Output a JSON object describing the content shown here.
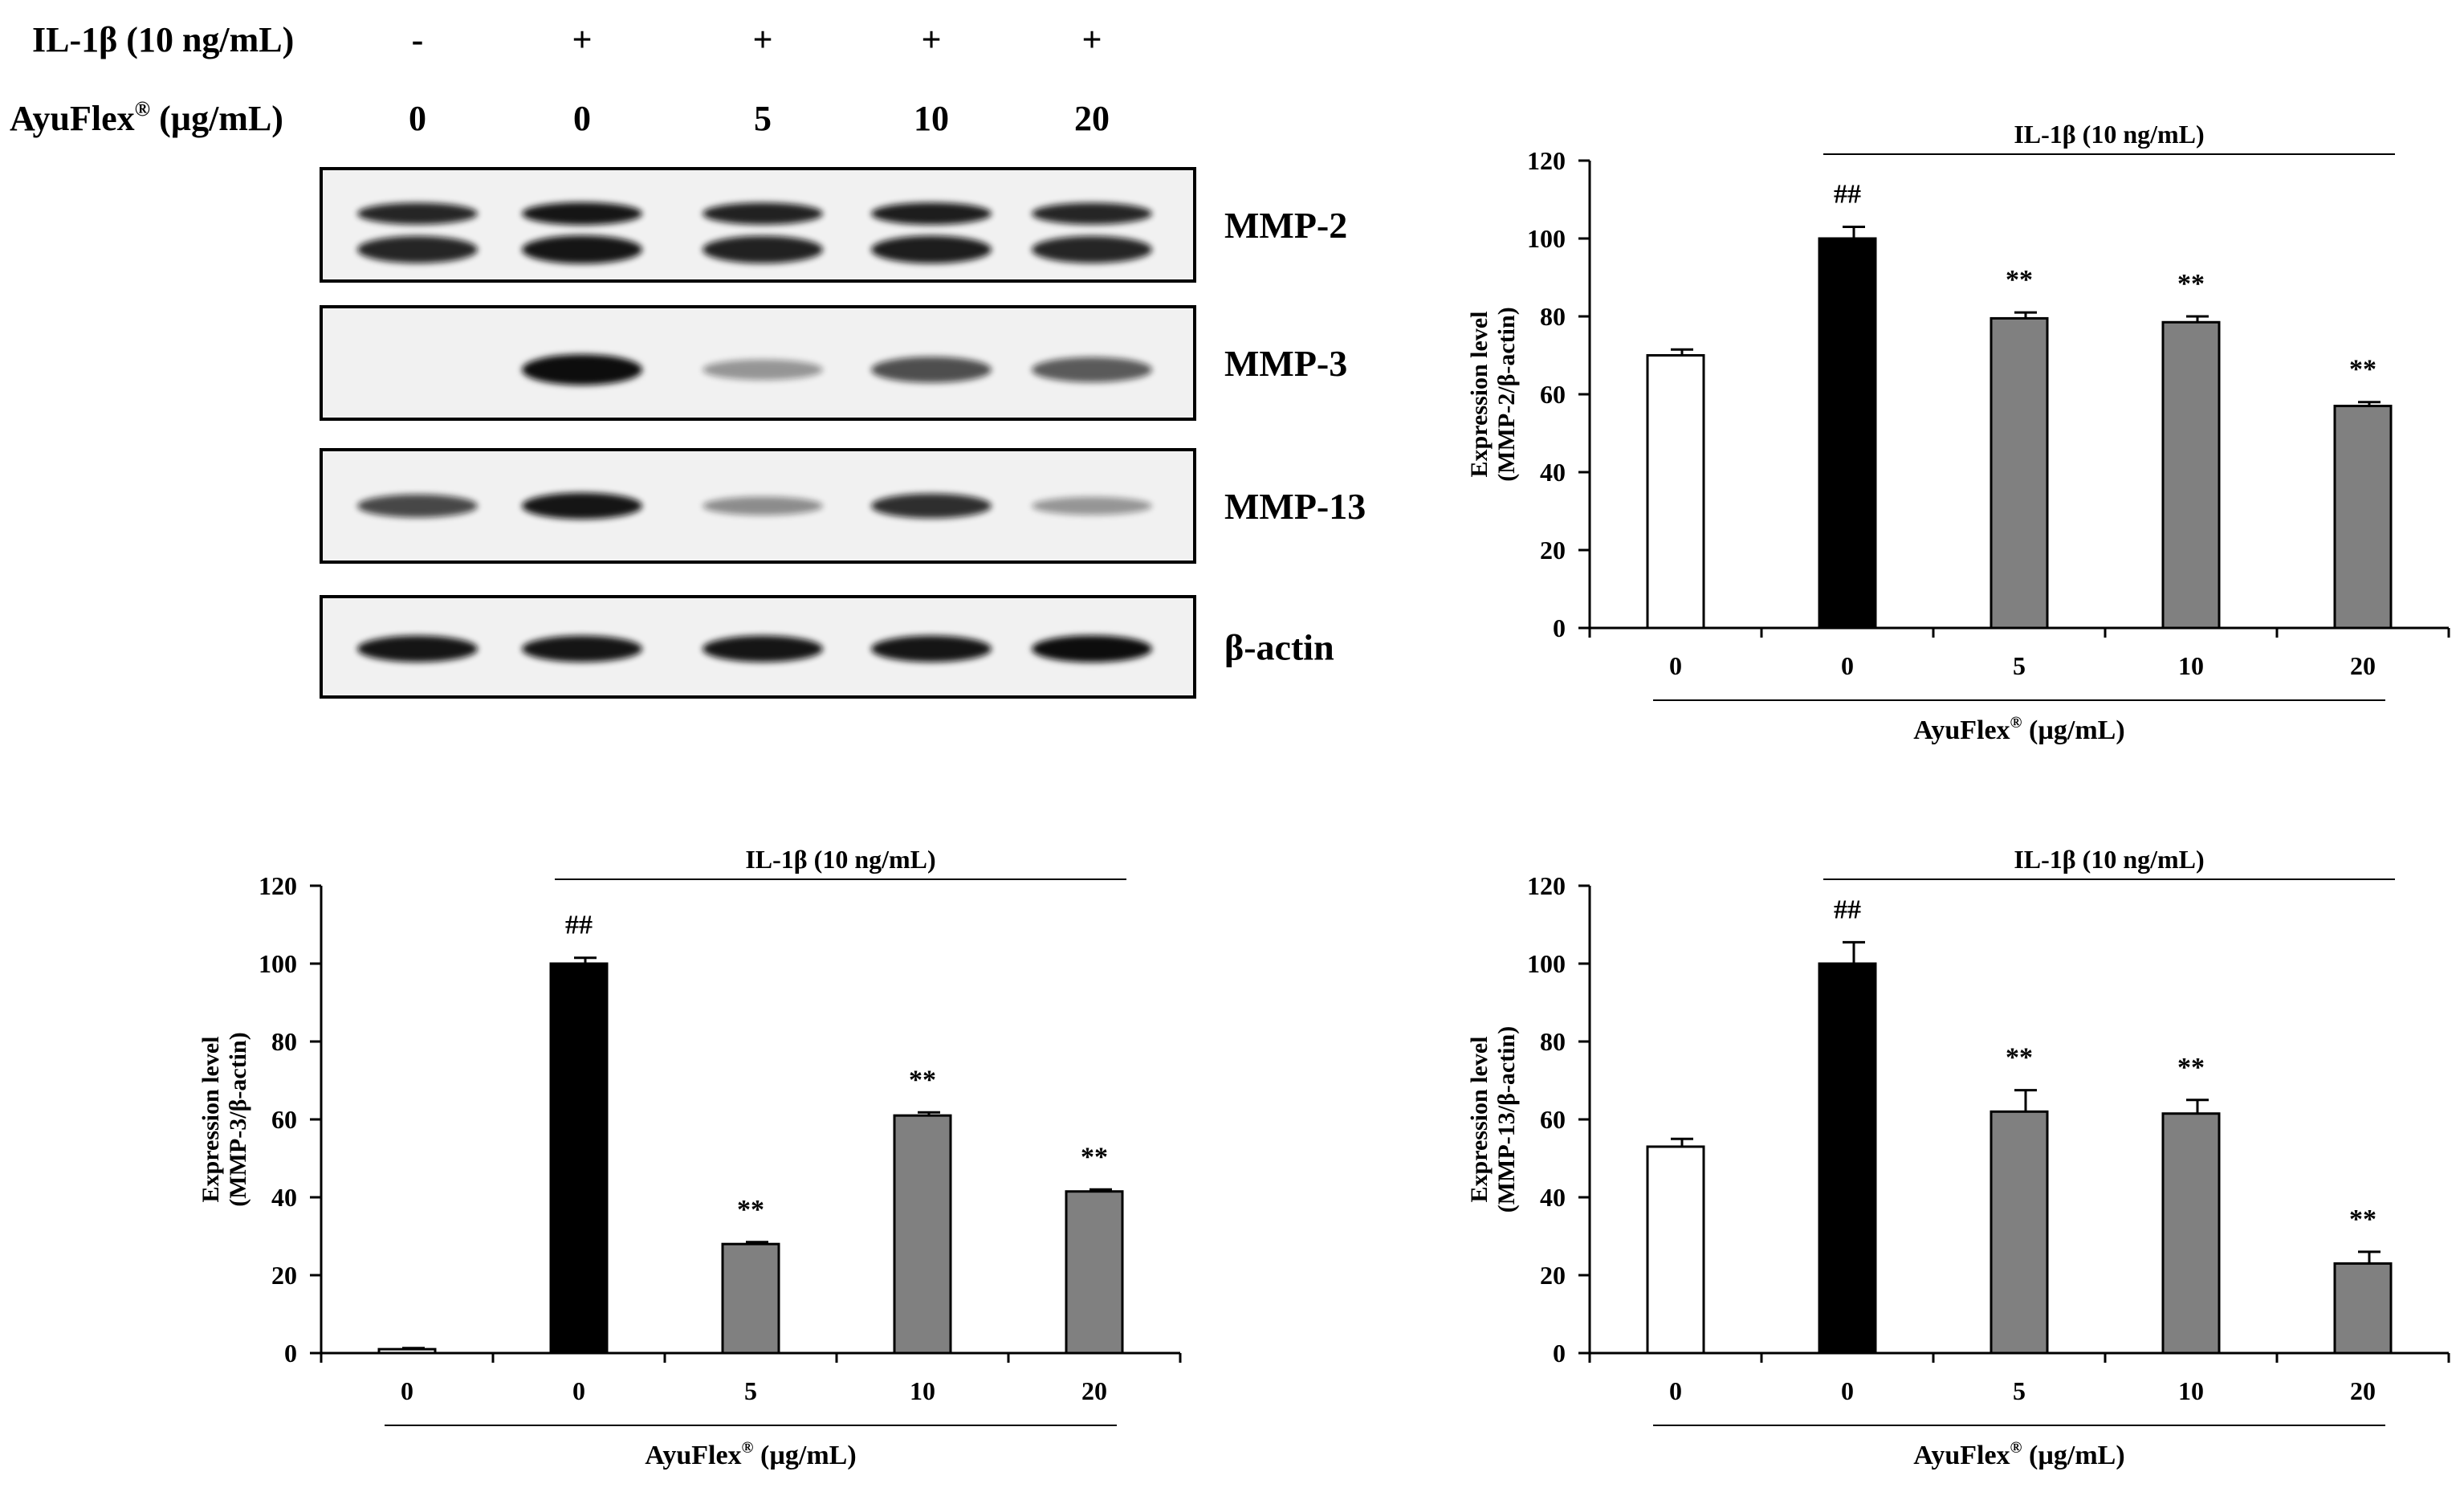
{
  "blot": {
    "rows": [
      {
        "label": "IL-1β (10 ng/mL)",
        "values": [
          "-",
          "+",
          "+",
          "+",
          "+"
        ]
      },
      {
        "label": "AyuFlex",
        "sup": "®",
        "unit": " (µg/mL)",
        "values": [
          "0",
          "0",
          "5",
          "10",
          "20"
        ]
      }
    ],
    "proteins": [
      {
        "name": "MMP-2",
        "intensity": [
          0.85,
          0.95,
          0.88,
          0.9,
          0.85
        ]
      },
      {
        "name": "MMP-3",
        "intensity": [
          0.0,
          1.0,
          0.2,
          0.62,
          0.55
        ]
      },
      {
        "name": "MMP-13",
        "intensity": [
          0.65,
          0.95,
          0.25,
          0.8,
          0.2
        ]
      },
      {
        "name": "β-actin",
        "intensity": [
          0.95,
          0.95,
          0.95,
          0.95,
          1.0
        ]
      }
    ]
  },
  "colors": {
    "control": "#ffffff",
    "il1b_only": "#000000",
    "treated": "#808080",
    "stroke": "#000000"
  },
  "chart_data": [
    {
      "type": "bar",
      "categories": [
        "0",
        "0",
        "5",
        "10",
        "20"
      ],
      "values": [
        70,
        100,
        79.5,
        78.5,
        57
      ],
      "errors": [
        1.5,
        3,
        1.5,
        1.5,
        1
      ],
      "annotations": [
        "",
        "##",
        "**",
        "**",
        "**"
      ],
      "bar_colors": [
        "#ffffff",
        "#000000",
        "#808080",
        "#808080",
        "#808080"
      ],
      "ylabel_line1": "Expression level",
      "ylabel_line2": "(MMP-2/β-actin)",
      "xlabel_main": "AyuFlex",
      "xlabel_sup": "®",
      "xlabel_unit": " (µg/mL)",
      "group_label": "IL-1β (10 ng/mL)",
      "yticks": [
        "0",
        "20",
        "40",
        "60",
        "80",
        "100",
        "120"
      ],
      "ylim": [
        0,
        120
      ]
    },
    {
      "type": "bar",
      "categories": [
        "0",
        "0",
        "5",
        "10",
        "20"
      ],
      "values": [
        1,
        100,
        28,
        61,
        41.5
      ],
      "errors": [
        0.3,
        1.5,
        0.5,
        0.8,
        0.5
      ],
      "annotations": [
        "",
        "##",
        "**",
        "**",
        "**"
      ],
      "bar_colors": [
        "#ffffff",
        "#000000",
        "#808080",
        "#808080",
        "#808080"
      ],
      "ylabel_line1": "Expression level",
      "ylabel_line2": "(MMP-3/β-actin)",
      "xlabel_main": "AyuFlex",
      "xlabel_sup": "®",
      "xlabel_unit": " (µg/mL)",
      "group_label": "IL-1β (10 ng/mL)",
      "yticks": [
        "0",
        "20",
        "40",
        "60",
        "80",
        "100",
        "120"
      ],
      "ylim": [
        0,
        120
      ]
    },
    {
      "type": "bar",
      "categories": [
        "0",
        "0",
        "5",
        "10",
        "20"
      ],
      "values": [
        53,
        100,
        62,
        61.5,
        23
      ],
      "errors": [
        2,
        5.5,
        5.5,
        3.5,
        3
      ],
      "annotations": [
        "",
        "##",
        "**",
        "**",
        "**"
      ],
      "bar_colors": [
        "#ffffff",
        "#000000",
        "#808080",
        "#808080",
        "#808080"
      ],
      "ylabel_line1": "Expression level",
      "ylabel_line2": "(MMP-13/β-actin)",
      "xlabel_main": "AyuFlex",
      "xlabel_sup": "®",
      "xlabel_unit": " (µg/mL)",
      "group_label": "IL-1β (10 ng/mL)",
      "yticks": [
        "0",
        "20",
        "40",
        "60",
        "80",
        "100",
        "120"
      ],
      "ylim": [
        0,
        120
      ]
    }
  ]
}
